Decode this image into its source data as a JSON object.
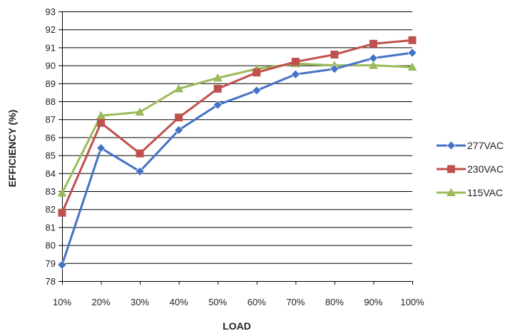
{
  "chart_data": {
    "type": "line",
    "title": "",
    "xlabel": "LOAD",
    "ylabel": "EFFICIENCY (%)",
    "categories": [
      "10%",
      "20%",
      "30%",
      "40%",
      "50%",
      "60%",
      "70%",
      "80%",
      "90%",
      "100%"
    ],
    "ylim": [
      78,
      93
    ],
    "yticks": [
      78,
      79,
      80,
      81,
      82,
      83,
      84,
      85,
      86,
      87,
      88,
      89,
      90,
      91,
      92,
      93
    ],
    "grid": true,
    "legend": "right",
    "series": [
      {
        "name": "277VAC",
        "color": "#4472C4",
        "marker": "diamond",
        "values": [
          78.9,
          85.4,
          84.1,
          86.4,
          87.8,
          88.6,
          89.5,
          89.8,
          90.4,
          90.7
        ]
      },
      {
        "name": "230VAC",
        "color": "#C0504D",
        "marker": "square",
        "values": [
          81.8,
          86.8,
          85.1,
          87.1,
          88.7,
          89.6,
          90.2,
          90.6,
          91.2,
          91.4
        ]
      },
      {
        "name": "115VAC",
        "color": "#9BBB59",
        "marker": "triangle",
        "values": [
          82.9,
          87.2,
          87.4,
          88.7,
          89.3,
          89.8,
          90.1,
          90.0,
          90.0,
          89.9
        ]
      }
    ]
  }
}
